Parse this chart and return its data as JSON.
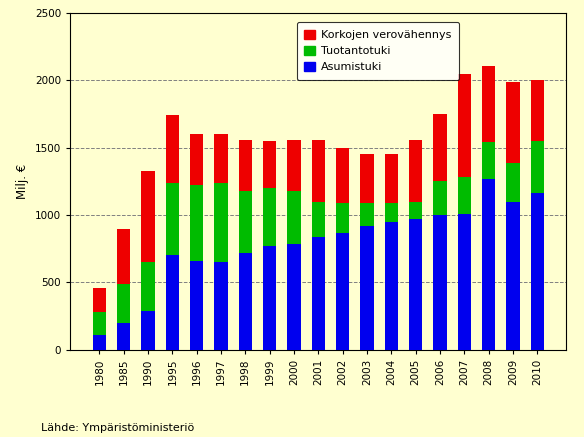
{
  "years": [
    "1980",
    "1985",
    "1990",
    "1995",
    "1996",
    "1997",
    "1998",
    "1999",
    "2000",
    "2001",
    "2002",
    "2003",
    "2004",
    "2005",
    "2006",
    "2007",
    "2008",
    "2009",
    "2010"
  ],
  "asumistuki": [
    110,
    195,
    290,
    700,
    660,
    650,
    720,
    770,
    785,
    840,
    870,
    920,
    950,
    970,
    1000,
    1010,
    1270,
    1100,
    1160
  ],
  "tuotantotuki": [
    170,
    290,
    360,
    540,
    560,
    590,
    460,
    430,
    390,
    260,
    220,
    170,
    140,
    130,
    250,
    270,
    270,
    290,
    390
  ],
  "korkojen_verovahennys": [
    180,
    410,
    680,
    500,
    380,
    360,
    380,
    350,
    380,
    460,
    410,
    360,
    360,
    460,
    500,
    770,
    570,
    600,
    450
  ],
  "color_asumistuki": "#0000EE",
  "color_tuotantotuki": "#00BB00",
  "color_korkojen": "#EE0000",
  "ylabel": "Milj. €",
  "ylim": [
    0,
    2500
  ],
  "yticks": [
    0,
    500,
    1000,
    1500,
    2000,
    2500
  ],
  "legend_labels": [
    "Korkojen verovähennys",
    "Tuotantotuki",
    "Asumistuki"
  ],
  "background_color": "#FFFFD0",
  "plot_bg_color": "#FFFFD0",
  "source_text": "Lähde: Ympäristöministeriö"
}
